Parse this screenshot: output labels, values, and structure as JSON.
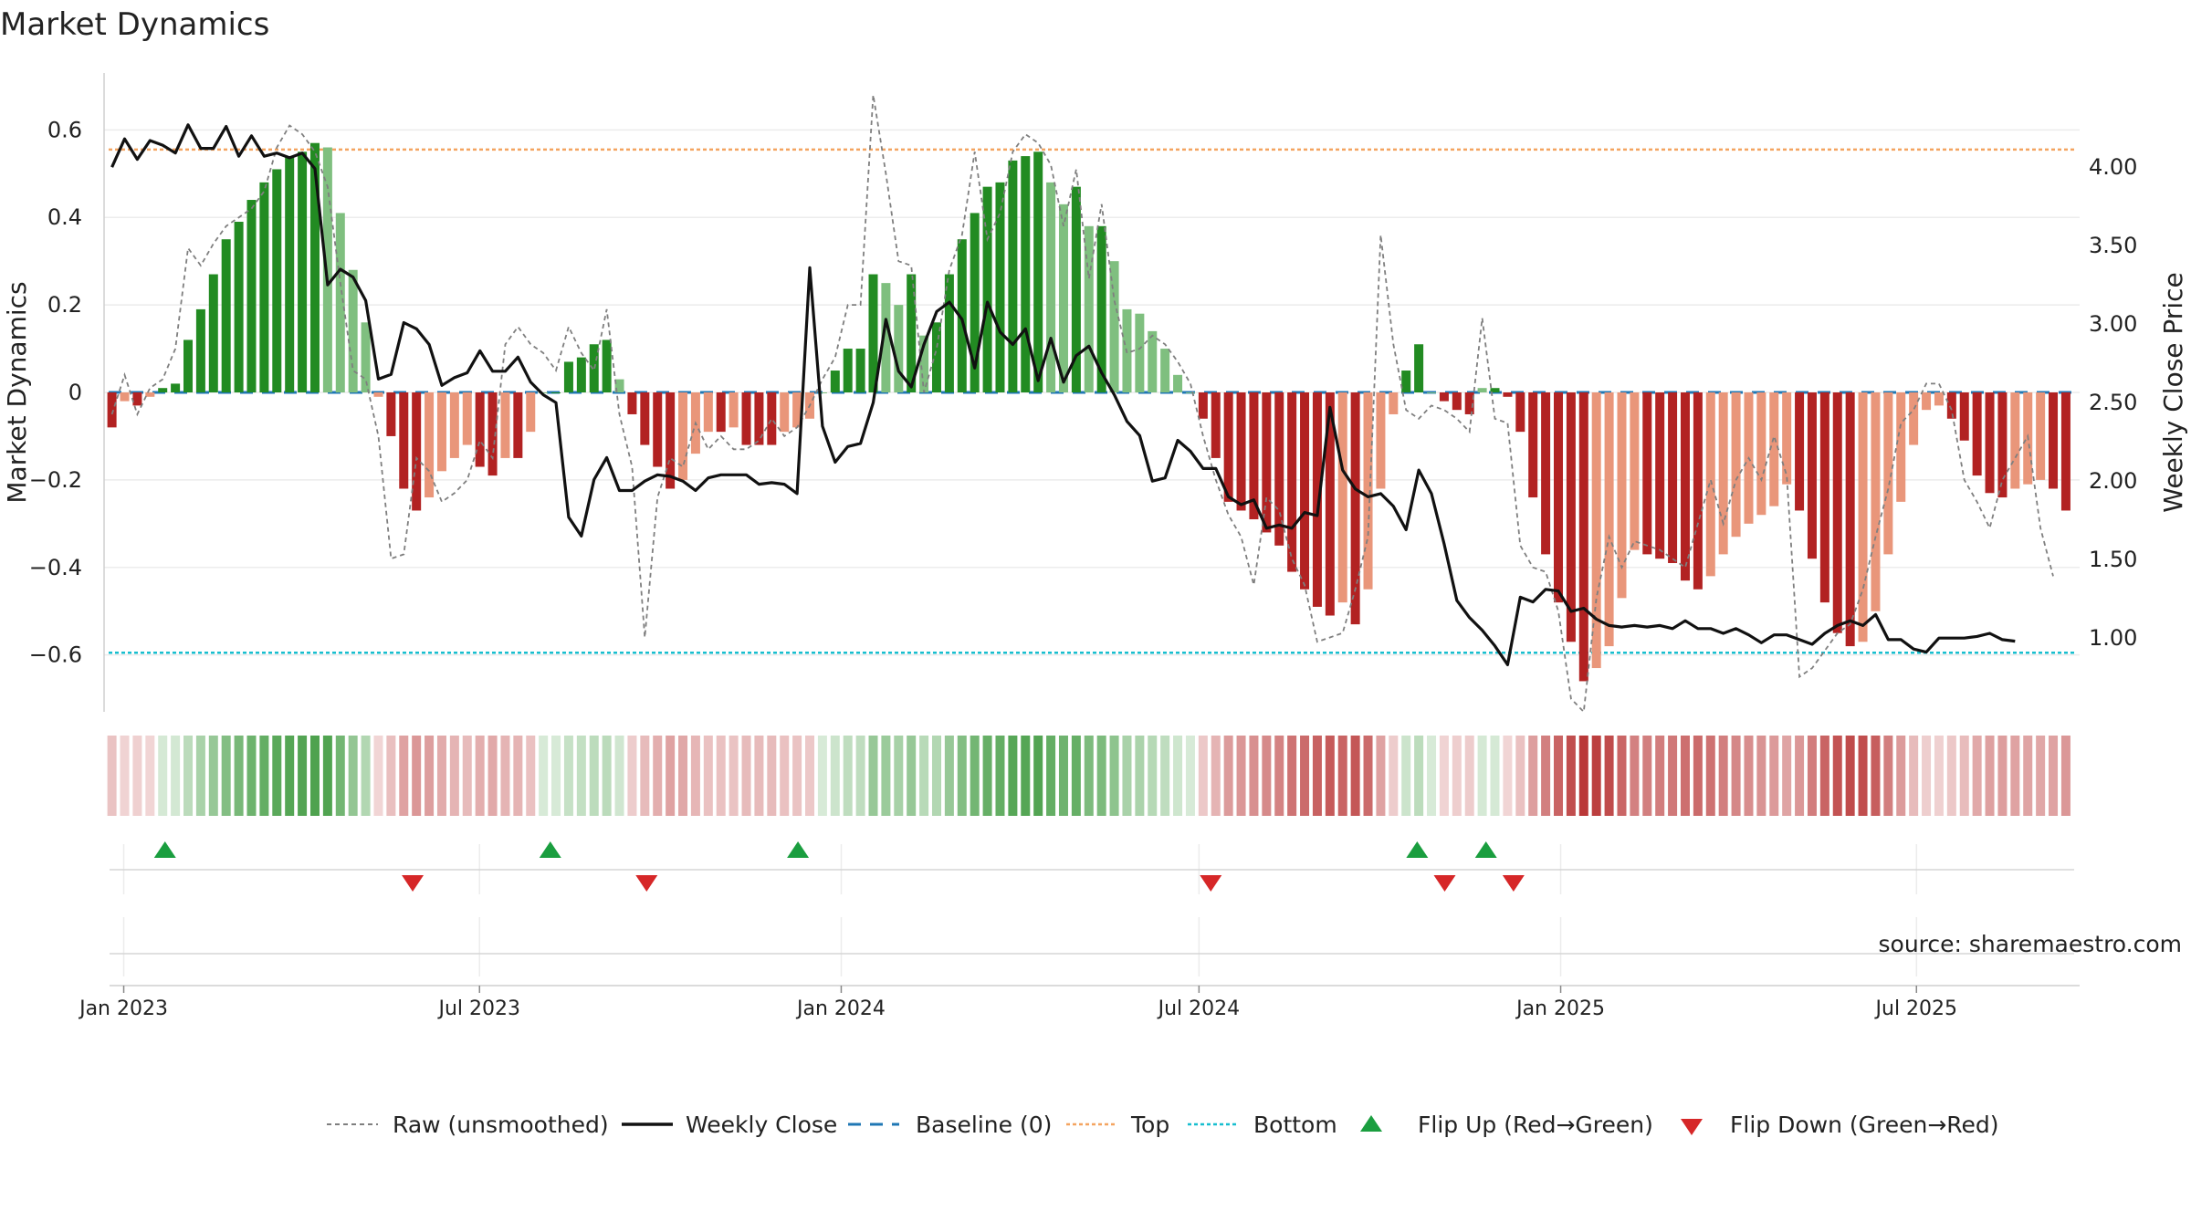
{
  "chart_data": {
    "type": "bar",
    "title": "Market Dynamics",
    "ylabel_left": "Market Dynamics",
    "ylabel_right": "Weekly Close Price",
    "source": "source: sharemaestro.com",
    "x_start": "2022-12-26",
    "x_end": "2025-09-15",
    "xlim": [
      "2022-12-22",
      "2025-09-22"
    ],
    "ylim_left": [
      -0.73,
      0.73
    ],
    "ylim_right": [
      0.53,
      4.6
    ],
    "yticks_left": [
      0.6,
      0.4,
      0.2,
      0,
      -0.2,
      -0.4,
      -0.6
    ],
    "yticks_left_labels": [
      "0.6",
      "0.4",
      "0.2",
      "0",
      "−0.2",
      "−0.4",
      "−0.6"
    ],
    "yticks_right": [
      4.0,
      3.5,
      3.0,
      2.5,
      2.0,
      1.5,
      1.0
    ],
    "yticks_right_labels": [
      "4.00",
      "3.50",
      "3.00",
      "2.50",
      "2.00",
      "1.50",
      "1.00"
    ],
    "xticks": [
      "2023-01-01",
      "2023-07-01",
      "2024-01-01",
      "2024-07-01",
      "2025-01-01",
      "2025-07-01"
    ],
    "xtick_labels": [
      "Jan 2023",
      "Jul 2023",
      "Jan 2024",
      "Jul 2024",
      "Jan 2025",
      "Jul 2025"
    ],
    "top_line": 0.555,
    "bottom_line": -0.595,
    "colors": {
      "dark_green": "#228B22",
      "light_green": "#7FBF7F",
      "dark_red": "#B22222",
      "light_red": "#E9967A",
      "raw_line": "#7f7f7f",
      "close_line": "#111111",
      "baseline": "#1f77b4",
      "top": "#f4a460",
      "bottom": "#17becf",
      "flip_up": "#1a9e3f",
      "flip_down": "#d62728"
    },
    "series": [
      {
        "name": "Market Dynamics",
        "values": [
          -0.08,
          -0.02,
          -0.03,
          -0.01,
          0.01,
          0.02,
          0.12,
          0.19,
          0.27,
          0.35,
          0.39,
          0.44,
          0.48,
          0.51,
          0.54,
          0.55,
          0.57,
          0.56,
          0.41,
          0.28,
          0.16,
          -0.01,
          -0.1,
          -0.22,
          -0.27,
          -0.24,
          -0.18,
          -0.15,
          -0.12,
          -0.17,
          -0.19,
          -0.15,
          -0.15,
          -0.09,
          0.0,
          0.0,
          0.07,
          0.08,
          0.11,
          0.12,
          0.03,
          -0.05,
          -0.12,
          -0.17,
          -0.22,
          -0.2,
          -0.14,
          -0.09,
          -0.09,
          -0.08,
          -0.12,
          -0.12,
          -0.12,
          -0.09,
          -0.08,
          -0.06,
          0.0,
          0.05,
          0.1,
          0.1,
          0.27,
          0.25,
          0.2,
          0.27,
          0.13,
          0.16,
          0.27,
          0.35,
          0.41,
          0.47,
          0.48,
          0.53,
          0.54,
          0.55,
          0.48,
          0.43,
          0.47,
          0.38,
          0.38,
          0.3,
          0.19,
          0.18,
          0.14,
          0.1,
          0.04,
          0.0,
          -0.06,
          -0.15,
          -0.25,
          -0.27,
          -0.29,
          -0.32,
          -0.35,
          -0.41,
          -0.45,
          -0.49,
          -0.51,
          -0.48,
          -0.53,
          -0.45,
          -0.22,
          -0.05,
          0.05,
          0.11,
          0.0,
          -0.02,
          -0.04,
          -0.05,
          0.01,
          0.01,
          -0.01,
          -0.09,
          -0.24,
          -0.37,
          -0.48,
          -0.57,
          -0.66,
          -0.63,
          -0.58,
          -0.47,
          -0.36,
          -0.37,
          -0.38,
          -0.39,
          -0.43,
          -0.45,
          -0.42,
          -0.37,
          -0.33,
          -0.3,
          -0.28,
          -0.26,
          -0.21,
          -0.27,
          -0.38,
          -0.48,
          -0.55,
          -0.58,
          -0.57,
          -0.5,
          -0.37,
          -0.25,
          -0.12,
          -0.04,
          -0.03,
          -0.06,
          -0.11,
          -0.19,
          -0.23,
          -0.24,
          -0.22,
          -0.21,
          -0.2,
          -0.22,
          -0.27
        ]
      },
      {
        "name": "Raw (unsmoothed)",
        "values": [
          -0.05,
          0.04,
          -0.05,
          0.01,
          0.03,
          0.1,
          0.33,
          0.29,
          0.34,
          0.38,
          0.4,
          0.42,
          0.46,
          0.56,
          0.61,
          0.59,
          0.55,
          0.47,
          0.25,
          0.05,
          0.03,
          -0.1,
          -0.38,
          -0.37,
          -0.15,
          -0.18,
          -0.25,
          -0.23,
          -0.2,
          -0.11,
          -0.15,
          0.11,
          0.15,
          0.11,
          0.09,
          0.05,
          0.15,
          0.09,
          0.05,
          0.19,
          -0.05,
          -0.17,
          -0.56,
          -0.24,
          -0.15,
          -0.17,
          -0.07,
          -0.13,
          -0.1,
          -0.13,
          -0.13,
          -0.11,
          -0.06,
          -0.1,
          -0.08,
          -0.03,
          0.03,
          0.08,
          0.2,
          0.2,
          0.68,
          0.5,
          0.3,
          0.29,
          0.0,
          0.1,
          0.28,
          0.36,
          0.55,
          0.35,
          0.41,
          0.55,
          0.59,
          0.57,
          0.52,
          0.38,
          0.51,
          0.26,
          0.43,
          0.21,
          0.09,
          0.1,
          0.13,
          0.11,
          0.07,
          0.02,
          -0.1,
          -0.2,
          -0.28,
          -0.33,
          -0.44,
          -0.24,
          -0.27,
          -0.38,
          -0.44,
          -0.57,
          -0.56,
          -0.55,
          -0.45,
          -0.33,
          0.36,
          0.11,
          -0.04,
          -0.06,
          -0.03,
          -0.04,
          -0.06,
          -0.09,
          0.17,
          -0.06,
          -0.07,
          -0.35,
          -0.4,
          -0.41,
          -0.5,
          -0.7,
          -0.73,
          -0.47,
          -0.33,
          -0.4,
          -0.34,
          -0.35,
          -0.36,
          -0.38,
          -0.4,
          -0.3,
          -0.2,
          -0.3,
          -0.2,
          -0.15,
          -0.2,
          -0.1,
          -0.19,
          -0.65,
          -0.63,
          -0.59,
          -0.55,
          -0.53,
          -0.45,
          -0.33,
          -0.22,
          -0.07,
          -0.04,
          0.02,
          0.02,
          -0.04,
          -0.2,
          -0.25,
          -0.31,
          -0.2,
          -0.15,
          -0.1,
          -0.31,
          -0.42
        ]
      },
      {
        "name": "Weekly Close",
        "values": [
          4.0,
          4.18,
          4.05,
          4.17,
          4.14,
          4.09,
          4.27,
          4.12,
          4.12,
          4.26,
          4.07,
          4.2,
          4.07,
          4.09,
          4.06,
          4.09,
          3.99,
          3.25,
          3.35,
          3.3,
          3.15,
          2.65,
          2.68,
          3.01,
          2.97,
          2.87,
          2.61,
          2.66,
          2.69,
          2.83,
          2.7,
          2.7,
          2.79,
          2.63,
          2.55,
          2.5,
          1.77,
          1.65,
          2.01,
          2.15,
          1.94,
          1.94,
          2.0,
          2.04,
          2.03,
          2.0,
          1.94,
          2.02,
          2.04,
          2.04,
          2.04,
          1.98,
          1.99,
          1.98,
          1.92,
          3.36,
          2.35,
          2.12,
          2.22,
          2.24,
          2.5,
          3.03,
          2.7,
          2.6,
          2.87,
          3.08,
          3.14,
          3.03,
          2.72,
          3.14,
          2.95,
          2.87,
          2.97,
          2.64,
          2.91,
          2.63,
          2.8,
          2.86,
          2.69,
          2.55,
          2.38,
          2.29,
          2.0,
          2.02,
          2.26,
          2.19,
          2.08,
          2.08,
          1.9,
          1.85,
          1.88,
          1.7,
          1.72,
          1.7,
          1.8,
          1.78,
          2.47,
          2.07,
          1.95,
          1.9,
          1.92,
          1.84,
          1.69,
          2.07,
          1.92,
          1.6,
          1.24,
          1.13,
          1.05,
          0.95,
          0.83,
          1.26,
          1.23,
          1.31,
          1.3,
          1.17,
          1.19,
          1.12,
          1.08,
          1.07,
          1.08,
          1.07,
          1.08,
          1.06,
          1.11,
          1.06,
          1.06,
          1.03,
          1.06,
          1.02,
          0.97,
          1.02,
          1.02,
          0.99,
          0.96,
          1.03,
          1.08,
          1.11,
          1.08,
          1.15,
          0.99,
          0.99,
          0.93,
          0.91,
          1.0,
          1.0,
          1.0,
          1.01,
          1.03,
          0.99,
          0.98
        ]
      }
    ],
    "flip_up": [
      "2023-01-22",
      "2023-08-06",
      "2023-12-10",
      "2024-10-20",
      "2024-11-24"
    ],
    "flip_down": [
      "2023-05-28",
      "2023-09-24",
      "2024-07-07",
      "2024-11-03",
      "2024-12-08"
    ]
  },
  "legend": {
    "raw": "Raw (unsmoothed)",
    "close": "Weekly Close",
    "baseline": "Baseline (0)",
    "top": "Top",
    "bottom": "Bottom",
    "flip_up": "Flip Up (Red→Green)",
    "flip_down": "Flip Down (Green→Red)"
  }
}
